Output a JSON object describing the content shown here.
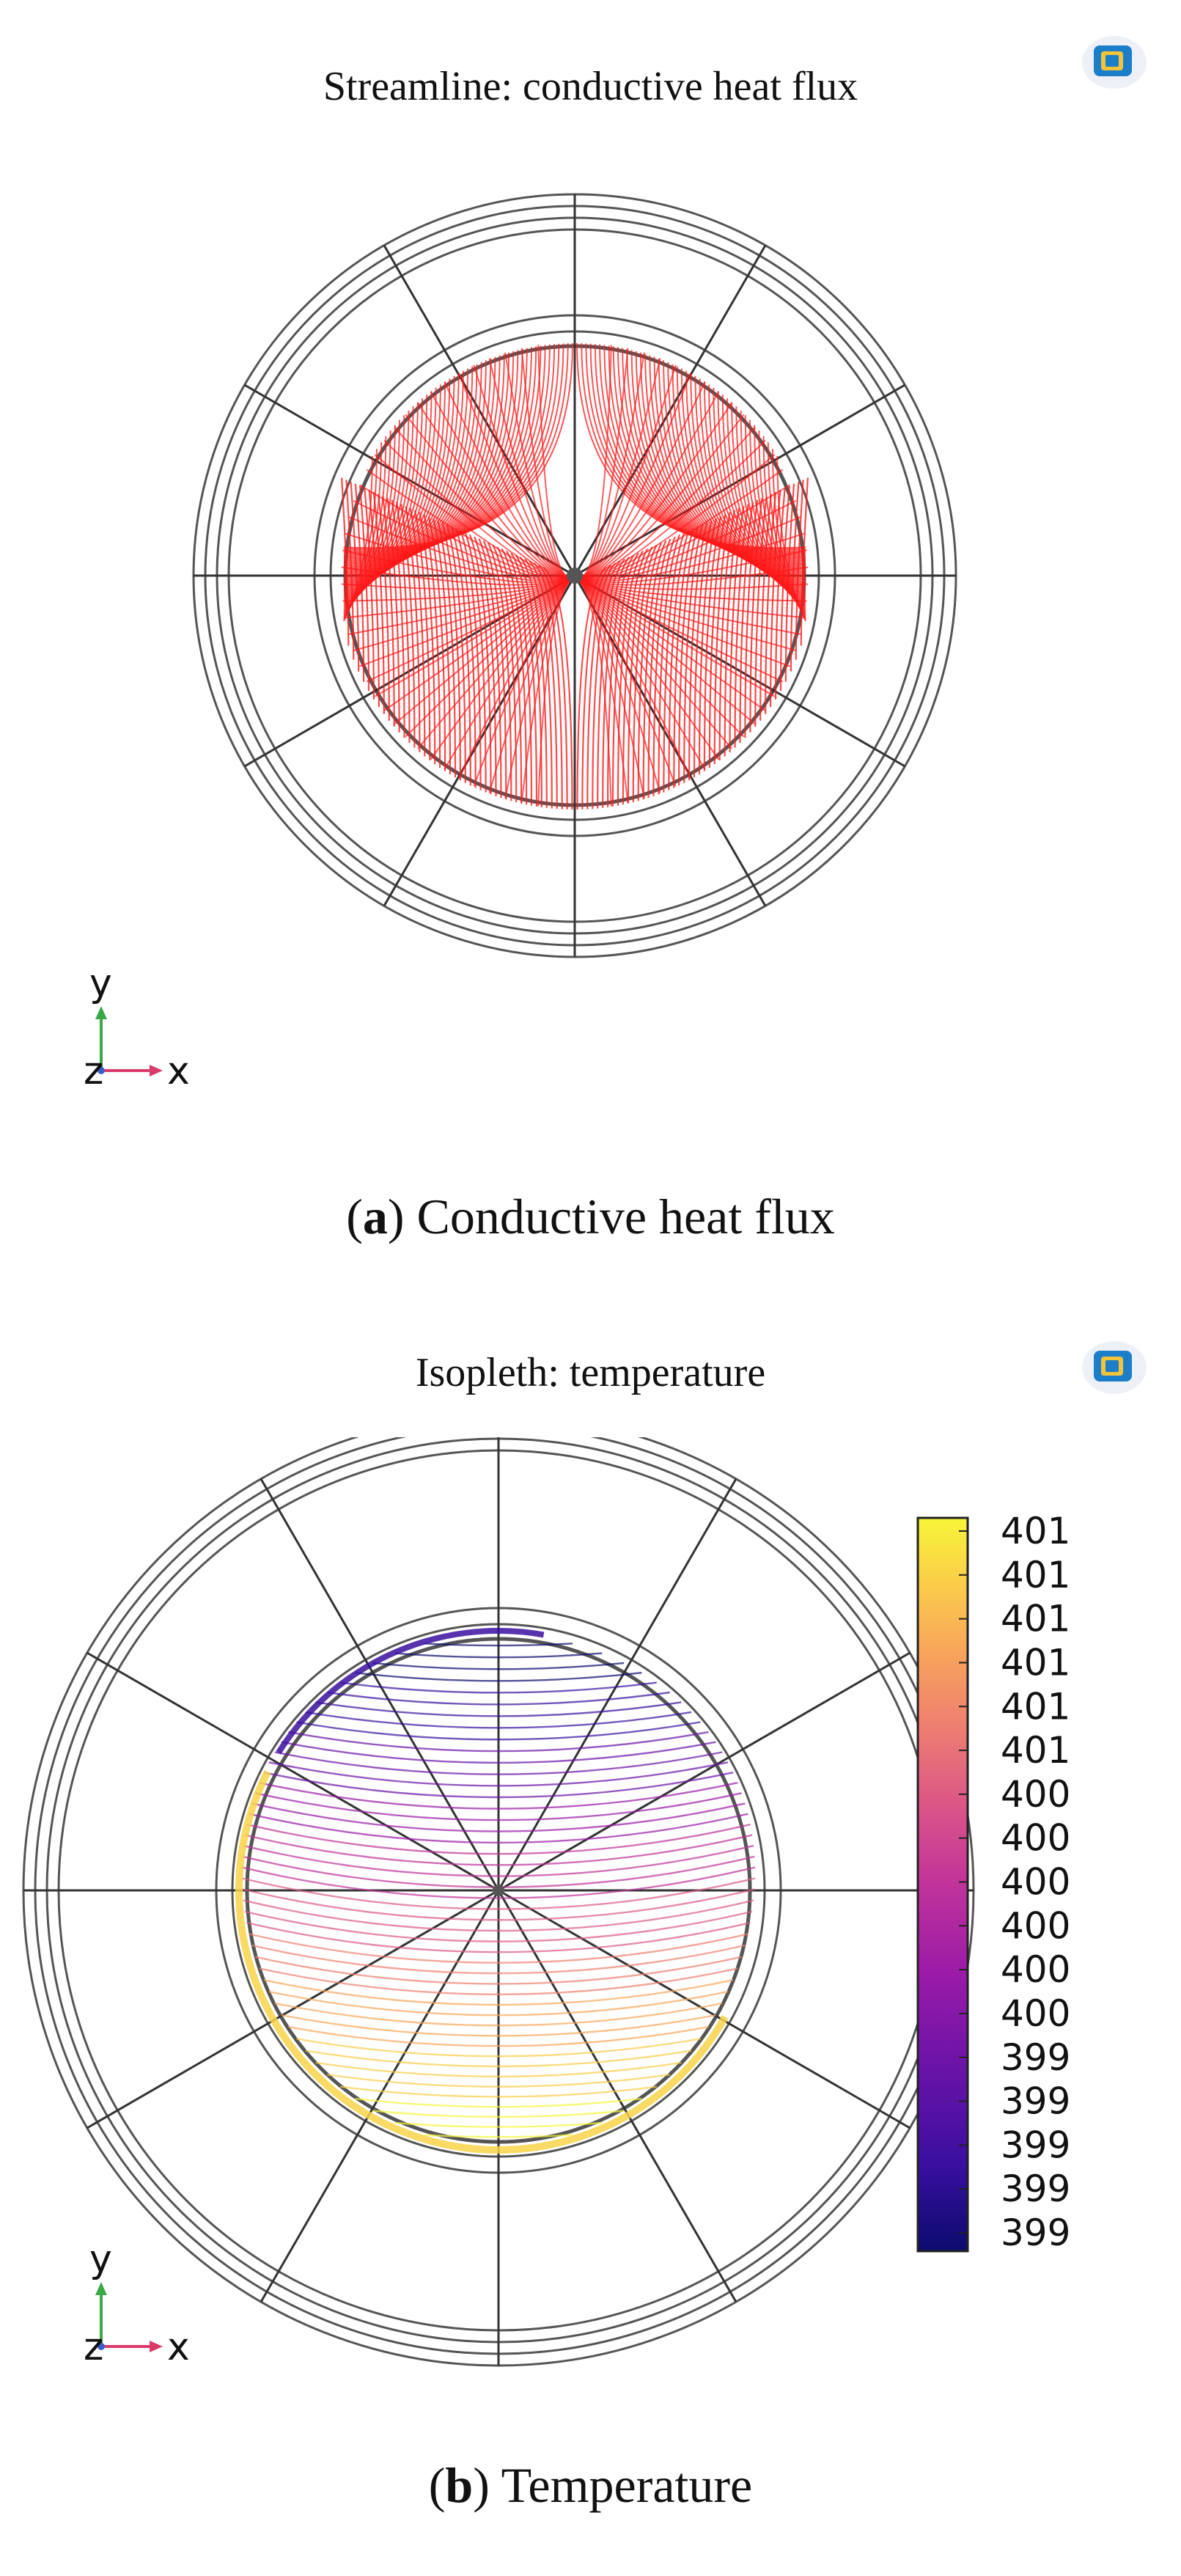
{
  "panel_a": {
    "title": "Streamline: conductive heat flux",
    "caption_letter": "a",
    "caption_text": " Conductive heat flux",
    "triad": {
      "y": "y",
      "z": "z",
      "x": "x"
    }
  },
  "panel_b": {
    "title": "Isopleth: temperature",
    "caption_letter": "b",
    "caption_text": " Temperature",
    "triad": {
      "y": "y",
      "z": "z",
      "x": "x"
    },
    "colorbar": {
      "labels": [
        "401",
        "401",
        "401",
        "401",
        "401",
        "401",
        "400",
        "400",
        "400",
        "400",
        "400",
        "400",
        "399",
        "399",
        "399",
        "399",
        "399"
      ],
      "colormap": [
        "#0b0b6e",
        "#3a0fa0",
        "#6a13a8",
        "#9b1ba8",
        "#c0339a",
        "#dd5a85",
        "#ef8070",
        "#f8a65a",
        "#fbcd4a",
        "#f7f53a"
      ]
    }
  },
  "colors": {
    "streamline": "#ff1a1a",
    "frame": "#555555",
    "spoke": "#333333"
  },
  "icons": {
    "app": "comsol-app-icon"
  }
}
